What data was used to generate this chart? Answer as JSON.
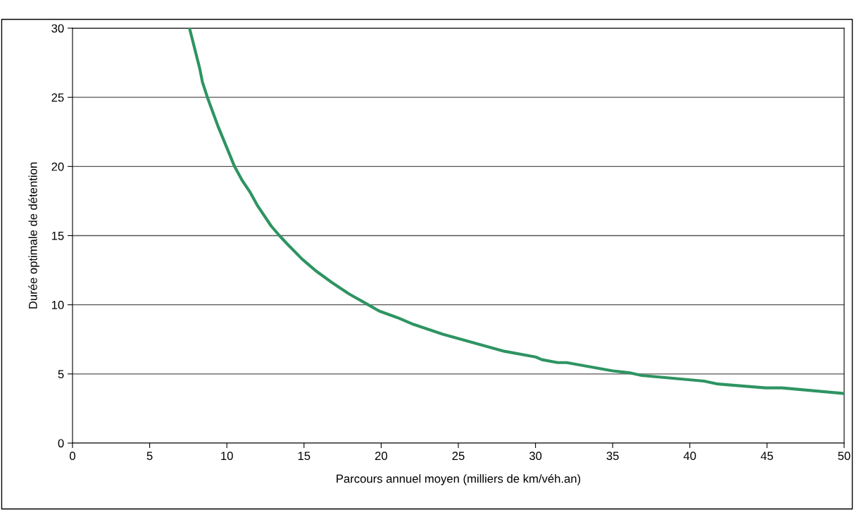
{
  "chart_data": {
    "type": "line",
    "xlabel": "Parcours annuel moyen (milliers de km/véh.an)",
    "ylabel": "Durée optimale de détention",
    "xlim": [
      0,
      50
    ],
    "xticks": [
      0,
      5,
      10,
      15,
      20,
      25,
      30,
      35,
      40,
      45,
      50
    ],
    "ylim": [
      0,
      30
    ],
    "yticks": [
      0,
      5,
      10,
      15,
      20,
      25,
      30
    ],
    "grid": "y",
    "marker": "none",
    "line_style": "solid",
    "series": [
      {
        "color": "#2e9462",
        "x": [
          7.58,
          8.24,
          8.42,
          8.74,
          9.43,
          10.5,
          10.99,
          11.53,
          11.97,
          12.87,
          13.41,
          13.91,
          14.88,
          15.83,
          16.82,
          17.9,
          19.16,
          19.87,
          21.06,
          22.1,
          24.0,
          27.98,
          30.0,
          30.42,
          31.44,
          32.02,
          35.0,
          36.06,
          36.88,
          40.92,
          41.83,
          44.9,
          45.96,
          50
        ],
        "values": [
          30,
          27.1,
          26.1,
          25.0,
          22.9,
          20.0,
          19.0,
          18.1,
          17.2,
          15.7,
          15.0,
          14.4,
          13.3,
          12.4,
          11.6,
          10.8,
          10.0,
          9.55,
          9.07,
          8.58,
          7.87,
          6.64,
          6.23,
          6.03,
          5.82,
          5.82,
          5.22,
          5.09,
          4.89,
          4.48,
          4.27,
          3.99,
          3.99,
          3.58
        ]
      }
    ]
  }
}
